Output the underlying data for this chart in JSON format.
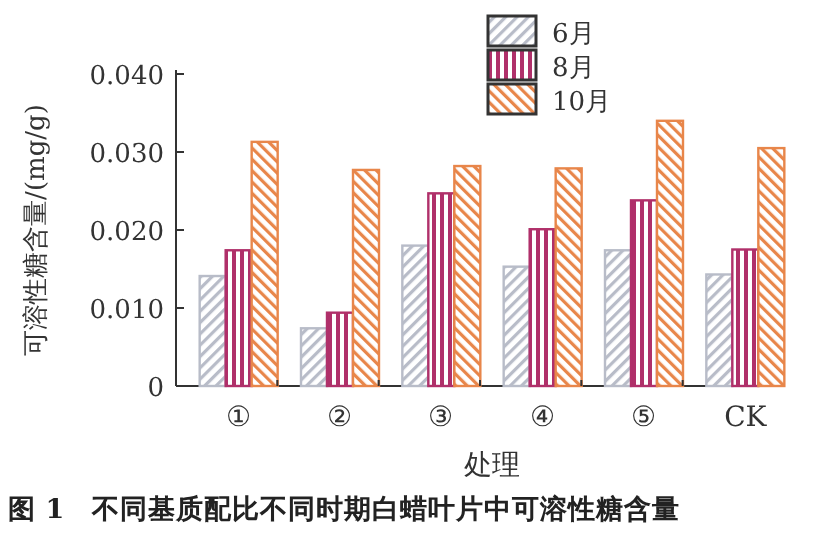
{
  "chart_data": {
    "type": "bar",
    "title": "图 1　不同基质配比不同时期白蜡叶片中可溶性糖含量",
    "xlabel": "处理",
    "ylabel": "可溶性糖含量/(mg/g)",
    "categories": [
      "①",
      "②",
      "③",
      "④",
      "⑤",
      "CK"
    ],
    "series": [
      {
        "name": "6月",
        "color": "#b8bcc8",
        "values": [
          0.0141,
          0.0074,
          0.018,
          0.0153,
          0.0174,
          0.0143
        ]
      },
      {
        "name": "8月",
        "color": "#b0306a",
        "values": [
          0.0174,
          0.0094,
          0.0247,
          0.0201,
          0.0238,
          0.0175
        ]
      },
      {
        "name": "10月",
        "color": "#e8864a",
        "values": [
          0.0313,
          0.0277,
          0.0282,
          0.0279,
          0.034,
          0.0305
        ]
      }
    ],
    "ylim": [
      0,
      0.04
    ],
    "yticks": [
      0,
      {
        "value": 0.01,
        "label": "0.010"
      },
      {
        "value": 0.02,
        "label": "0.020"
      },
      {
        "value": 0.03,
        "label": "0.030"
      },
      {
        "value": 0.04,
        "label": "0.040"
      }
    ],
    "legend": "top right"
  }
}
